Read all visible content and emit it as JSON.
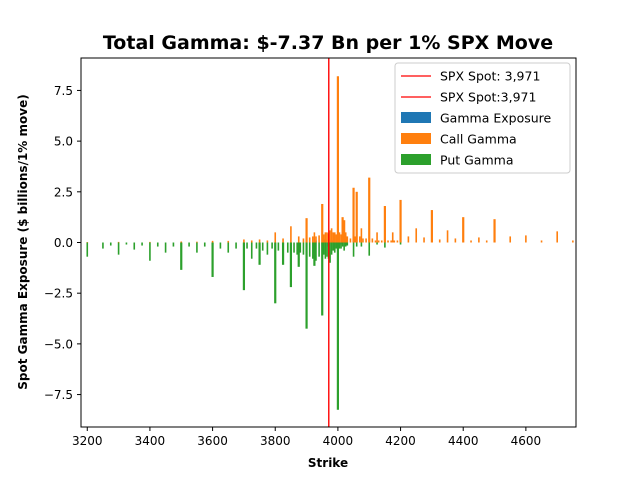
{
  "chart_data": {
    "type": "bar",
    "title": "Total Gamma: $-7.37 Bn per 1% SPX Move",
    "xlabel": "Strike",
    "ylabel": "Spot Gamma Exposure ($ billions/1% move)",
    "xlim": [
      3180,
      4760
    ],
    "ylim": [
      -9.1,
      9.1
    ],
    "x_ticks": [
      3200,
      3400,
      3600,
      3800,
      4000,
      4200,
      4400,
      4600
    ],
    "y_ticks": [
      -7.5,
      -5.0,
      -2.5,
      0.0,
      2.5,
      5.0,
      7.5
    ],
    "x_tick_labels": [
      "3200",
      "3400",
      "3600",
      "3800",
      "4000",
      "4200",
      "4400",
      "4600"
    ],
    "y_tick_labels": [
      "−7.5",
      "−5.0",
      "−2.5",
      "0.0",
      "2.5",
      "5.0",
      "7.5"
    ],
    "grid": false,
    "legend_position": "top-right",
    "spot_lines": [
      {
        "name": "SPX Spot: 3,971",
        "x": 3971,
        "color": "#ff0000"
      },
      {
        "name": "SPX Spot:3,971",
        "x": 3971,
        "color": "#ff0000"
      }
    ],
    "series": [
      {
        "name": "Gamma Exposure",
        "color": "#1f77b4",
        "points": [
          [
            3930,
            0.1
          ],
          [
            3950,
            -0.1
          ],
          [
            3960,
            0.15
          ],
          [
            3970,
            -0.2
          ],
          [
            3980,
            0.1
          ],
          [
            3990,
            -0.05
          ],
          [
            4000,
            0.2
          ],
          [
            4010,
            -0.1
          ]
        ]
      },
      {
        "name": "Call Gamma",
        "color": "#ff7f0e",
        "points": [
          [
            3200,
            0.02
          ],
          [
            3300,
            0.03
          ],
          [
            3400,
            0.03
          ],
          [
            3500,
            0.05
          ],
          [
            3550,
            0.04
          ],
          [
            3600,
            0.08
          ],
          [
            3650,
            0.08
          ],
          [
            3700,
            0.15
          ],
          [
            3725,
            0.1
          ],
          [
            3750,
            0.15
          ],
          [
            3775,
            0.1
          ],
          [
            3800,
            0.5
          ],
          [
            3825,
            0.2
          ],
          [
            3850,
            0.8
          ],
          [
            3875,
            0.3
          ],
          [
            3890,
            0.2
          ],
          [
            3900,
            1.2
          ],
          [
            3910,
            0.25
          ],
          [
            3920,
            0.3
          ],
          [
            3925,
            0.5
          ],
          [
            3930,
            0.3
          ],
          [
            3940,
            0.35
          ],
          [
            3950,
            1.9
          ],
          [
            3955,
            0.4
          ],
          [
            3960,
            0.5
          ],
          [
            3965,
            0.5
          ],
          [
            3970,
            0.45
          ],
          [
            3975,
            0.6
          ],
          [
            3980,
            0.7
          ],
          [
            3985,
            0.5
          ],
          [
            3990,
            0.5
          ],
          [
            3995,
            0.4
          ],
          [
            4000,
            8.2
          ],
          [
            4005,
            0.5
          ],
          [
            4010,
            0.4
          ],
          [
            4015,
            1.25
          ],
          [
            4020,
            1.1
          ],
          [
            4025,
            0.5
          ],
          [
            4030,
            0.3
          ],
          [
            4040,
            0.2
          ],
          [
            4050,
            2.7
          ],
          [
            4055,
            0.3
          ],
          [
            4060,
            2.5
          ],
          [
            4070,
            0.3
          ],
          [
            4075,
            0.7
          ],
          [
            4080,
            0.2
          ],
          [
            4090,
            0.2
          ],
          [
            4100,
            3.2
          ],
          [
            4110,
            0.2
          ],
          [
            4120,
            0.1
          ],
          [
            4125,
            0.5
          ],
          [
            4130,
            0.1
          ],
          [
            4140,
            0.1
          ],
          [
            4150,
            1.8
          ],
          [
            4160,
            0.1
          ],
          [
            4170,
            0.1
          ],
          [
            4175,
            0.5
          ],
          [
            4180,
            0.1
          ],
          [
            4190,
            0.1
          ],
          [
            4200,
            2.1
          ],
          [
            4225,
            0.3
          ],
          [
            4250,
            0.7
          ],
          [
            4275,
            0.25
          ],
          [
            4300,
            1.6
          ],
          [
            4325,
            0.15
          ],
          [
            4350,
            0.6
          ],
          [
            4375,
            0.2
          ],
          [
            4400,
            1.25
          ],
          [
            4425,
            0.1
          ],
          [
            4450,
            0.25
          ],
          [
            4475,
            0.1
          ],
          [
            4500,
            1.15
          ],
          [
            4550,
            0.3
          ],
          [
            4600,
            0.35
          ],
          [
            4650,
            0.1
          ],
          [
            4700,
            0.55
          ],
          [
            4750,
            0.1
          ]
        ]
      },
      {
        "name": "Put Gamma",
        "color": "#2ca02c",
        "points": [
          [
            3200,
            -0.7
          ],
          [
            3250,
            -0.3
          ],
          [
            3275,
            -0.15
          ],
          [
            3300,
            -0.6
          ],
          [
            3325,
            -0.1
          ],
          [
            3350,
            -0.35
          ],
          [
            3375,
            -0.15
          ],
          [
            3400,
            -0.9
          ],
          [
            3425,
            -0.2
          ],
          [
            3450,
            -0.5
          ],
          [
            3475,
            -0.2
          ],
          [
            3500,
            -1.35
          ],
          [
            3525,
            -0.2
          ],
          [
            3550,
            -0.5
          ],
          [
            3575,
            -0.2
          ],
          [
            3600,
            -1.7
          ],
          [
            3625,
            -0.3
          ],
          [
            3650,
            -0.5
          ],
          [
            3675,
            -0.3
          ],
          [
            3700,
            -2.35
          ],
          [
            3710,
            -0.3
          ],
          [
            3725,
            -0.8
          ],
          [
            3740,
            -0.3
          ],
          [
            3750,
            -1.1
          ],
          [
            3760,
            -0.4
          ],
          [
            3775,
            -0.6
          ],
          [
            3790,
            -0.3
          ],
          [
            3800,
            -3.0
          ],
          [
            3810,
            -0.4
          ],
          [
            3825,
            -1.1
          ],
          [
            3840,
            -0.5
          ],
          [
            3850,
            -2.2
          ],
          [
            3860,
            -0.5
          ],
          [
            3870,
            -0.6
          ],
          [
            3875,
            -1.2
          ],
          [
            3880,
            -0.5
          ],
          [
            3890,
            -0.6
          ],
          [
            3900,
            -4.25
          ],
          [
            3910,
            -0.7
          ],
          [
            3920,
            -0.8
          ],
          [
            3925,
            -1.15
          ],
          [
            3930,
            -0.9
          ],
          [
            3940,
            -0.7
          ],
          [
            3950,
            -3.6
          ],
          [
            3955,
            -0.6
          ],
          [
            3960,
            -0.8
          ],
          [
            3965,
            -0.7
          ],
          [
            3970,
            -0.8
          ],
          [
            3975,
            -1.0
          ],
          [
            3980,
            -0.6
          ],
          [
            3985,
            -0.4
          ],
          [
            3990,
            -0.5
          ],
          [
            3995,
            -0.3
          ],
          [
            4000,
            -8.25
          ],
          [
            4005,
            -0.3
          ],
          [
            4010,
            -0.3
          ],
          [
            4015,
            -0.2
          ],
          [
            4020,
            -0.4
          ],
          [
            4025,
            -0.2
          ],
          [
            4030,
            -0.15
          ],
          [
            4050,
            -0.7
          ],
          [
            4060,
            -0.2
          ],
          [
            4075,
            -0.2
          ],
          [
            4100,
            -0.65
          ],
          [
            4125,
            -0.1
          ],
          [
            4150,
            -0.25
          ],
          [
            4200,
            -0.1
          ]
        ]
      }
    ]
  }
}
